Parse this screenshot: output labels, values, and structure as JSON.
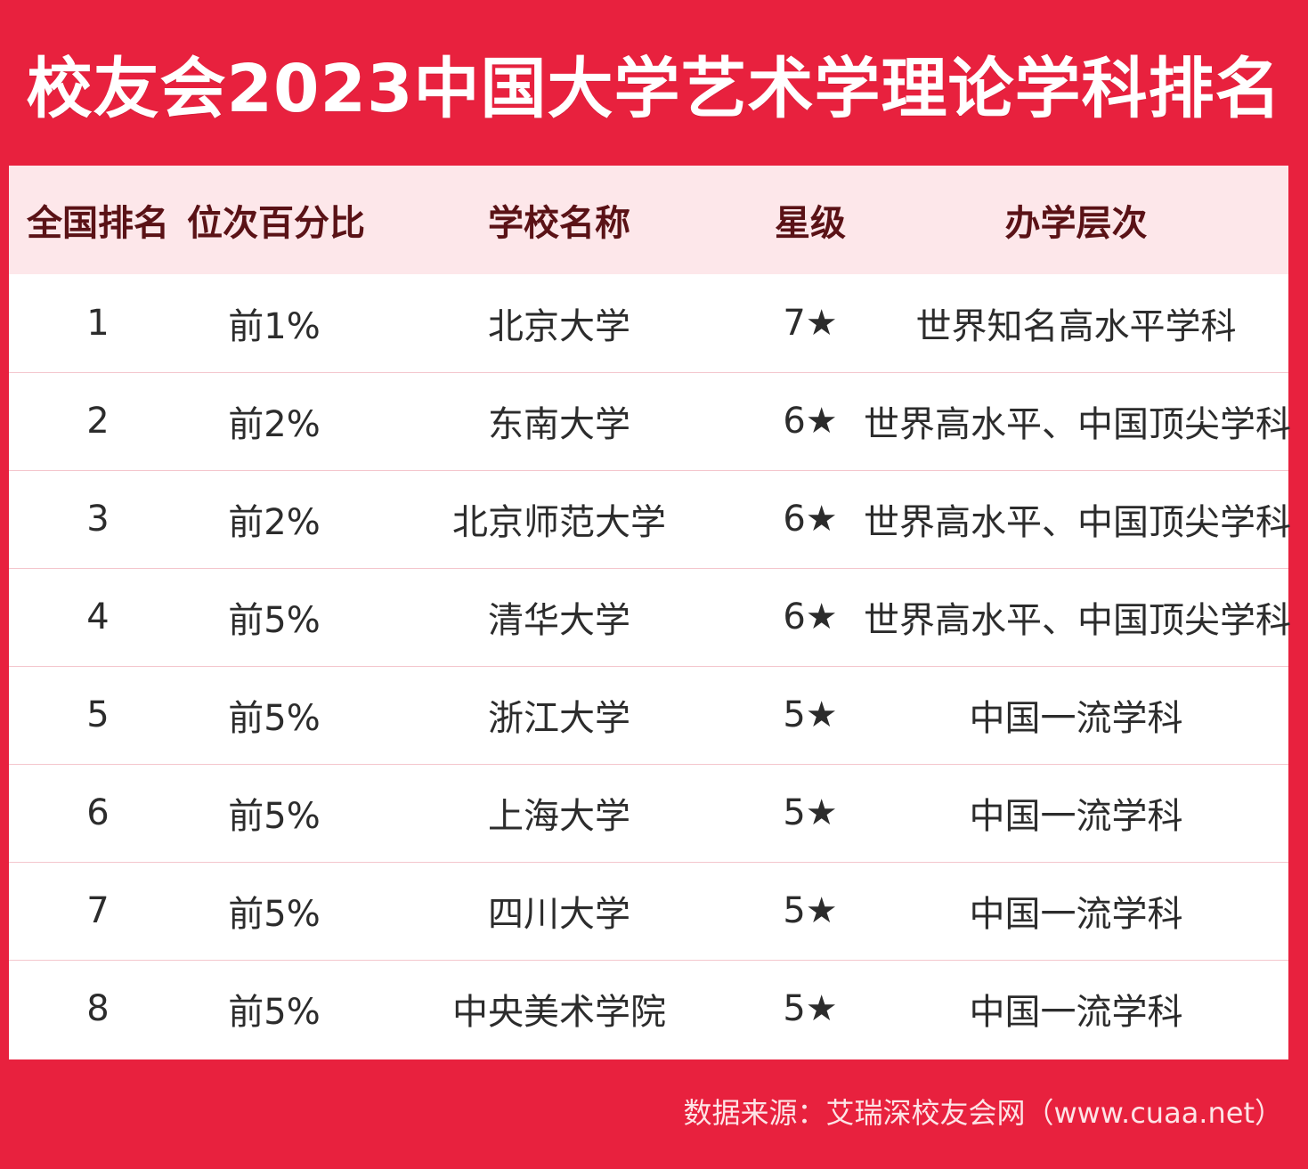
{
  "title": "校友会2023中国大学艺术学理论学科排名",
  "table": {
    "headers": [
      "全国排名",
      "位次百分比",
      "学校名称",
      "星级",
      "办学层次"
    ],
    "rows": [
      {
        "rank": "1",
        "percentile": "前1%",
        "school": "北京大学",
        "stars": "7★",
        "level": "世界知名高水平学科"
      },
      {
        "rank": "2",
        "percentile": "前2%",
        "school": "东南大学",
        "stars": "6★",
        "level": "世界高水平、中国顶尖学科"
      },
      {
        "rank": "3",
        "percentile": "前2%",
        "school": "北京师范大学",
        "stars": "6★",
        "level": "世界高水平、中国顶尖学科"
      },
      {
        "rank": "4",
        "percentile": "前5%",
        "school": "清华大学",
        "stars": "6★",
        "level": "世界高水平、中国顶尖学科"
      },
      {
        "rank": "5",
        "percentile": "前5%",
        "school": "浙江大学",
        "stars": "5★",
        "level": "中国一流学科"
      },
      {
        "rank": "6",
        "percentile": "前5%",
        "school": "上海大学",
        "stars": "5★",
        "level": "中国一流学科"
      },
      {
        "rank": "7",
        "percentile": "前5%",
        "school": "四川大学",
        "stars": "5★",
        "level": "中国一流学科"
      },
      {
        "rank": "8",
        "percentile": "前5%",
        "school": "中央美术学院",
        "stars": "5★",
        "level": "中国一流学科"
      }
    ]
  },
  "footer": {
    "source": "数据来源：艾瑞深校友会网（www.cuaa.net）"
  },
  "colors": {
    "background": "#e8213e",
    "header_row": "#fde7ea",
    "header_text": "#5a1216",
    "cell_text": "#2c2c2c",
    "row_divider": "#f4c6cd"
  }
}
